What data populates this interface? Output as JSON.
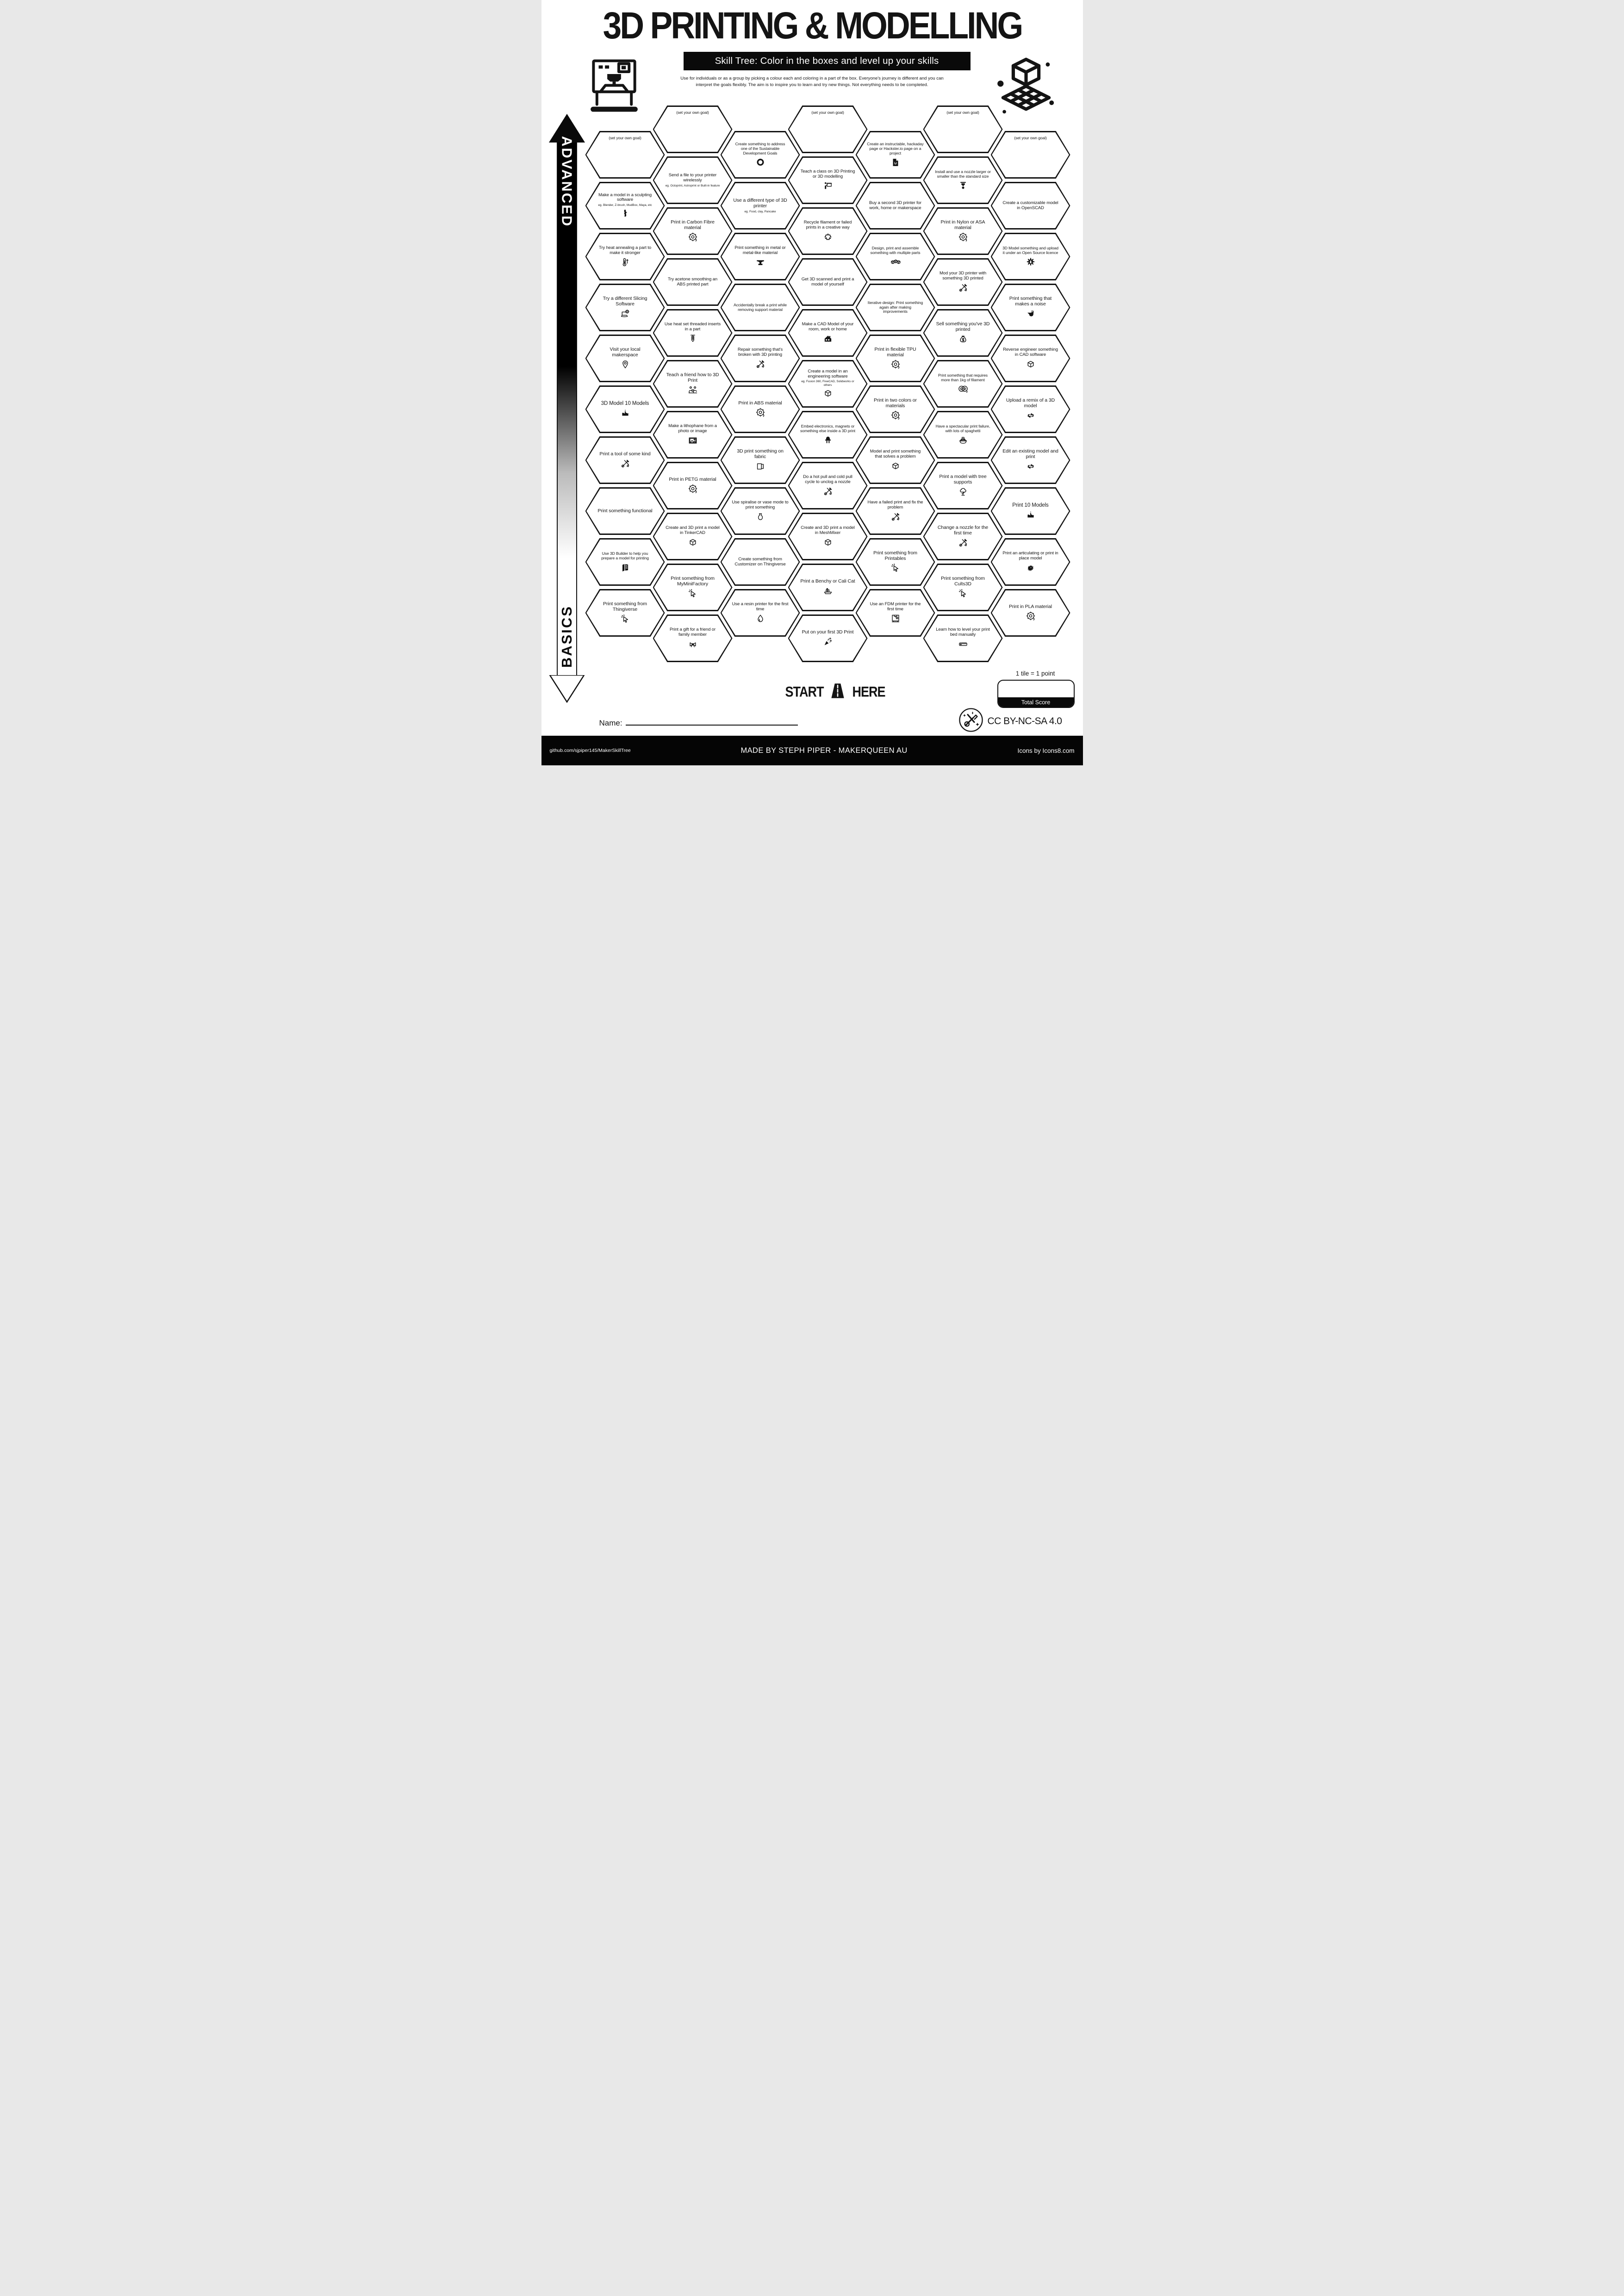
{
  "title": "3D PRINTING & MODELLING",
  "subtitle": "Skill Tree:  Color in the boxes and level up your skills",
  "intro": {
    "line1": "Use for individuals or as a group by picking a colour each and coloring in a part of the box.  Everyone's journey is different and you can",
    "line2": "interpret the goals flexibly.  The aim is to inspire you to learn and try new things. Not everything needs to be completed."
  },
  "axis": {
    "advanced": "ADVANCED",
    "basics": "BASICS"
  },
  "start": {
    "word1": "START",
    "word2": "HERE"
  },
  "scoring": {
    "tile_note": "1 tile = 1 point",
    "total_label": "Total Score"
  },
  "name_label": "Name:",
  "footer": {
    "github": "github.com/sjpiper145/MakerSkillTree",
    "made_by": "MADE BY STEPH PIPER  -  MAKERQUEEN AU",
    "icons_credit": "Icons by Icons8.com",
    "license": "CC BY-NC-SA 4.0"
  },
  "columns": [
    {
      "hexes": [
        {
          "label": "(set your own goal)",
          "goal": true
        },
        {
          "label": "Make a model in a sculpting software",
          "sub": "eg. Blender, Z-brush, MudBox, Maya, etc",
          "icon": "venus-statue"
        },
        {
          "label": "Try heat annealing a part to make it stronger",
          "icon": "thermometer-up"
        },
        {
          "label": "Try a different Slicing Software",
          "icon": "laptop-gear"
        },
        {
          "label": "Visit your local makerspace",
          "icon": "map-pin"
        },
        {
          "label": "3D Model 10 Models",
          "icon": "birthday-cake"
        },
        {
          "label": "Print a tool of some kind",
          "icon": "tools-crossed"
        },
        {
          "label": "Print something functional"
        },
        {
          "label": "Use 3D Builder to help you prepare a model for printing",
          "icon": "builder-3d"
        },
        {
          "label": "Print something from Thingiverse",
          "icon": "cursor-click"
        }
      ]
    },
    {
      "hexes": [
        {
          "label": "(set your own goal)",
          "goal": true
        },
        {
          "label": "Send a file to your printer wirelessly",
          "sub": "eg. Octoprint, Astroprint or Built-in feature"
        },
        {
          "label": "Print in Carbon Fibre material",
          "icon": "filament-spool"
        },
        {
          "label": "Try acetone smoothing an ABS printed part"
        },
        {
          "label": "Use heat set threaded inserts in a part",
          "icon": "heat-insert-screw"
        },
        {
          "label": "Teach a friend how to 3D Print",
          "icon": "friends-teaching"
        },
        {
          "label": "Make a lithophane from a photo or image",
          "icon": "photo-frame"
        },
        {
          "label": "Print in PETG material",
          "icon": "filament-spool"
        },
        {
          "label": "Create and 3D print a model in TinkerCAD",
          "icon": "cube-3d"
        },
        {
          "label": "Print something from MyMiniFactory",
          "icon": "cursor-click"
        },
        {
          "label": "Print a gift for a friend or family member",
          "icon": "gift-bow"
        }
      ]
    },
    {
      "hexes": [
        {
          "label": "Create something to address one of the Sustainable Development Goals",
          "icon": "sdg-wheel"
        },
        {
          "label": "Use a different type of 3D printer",
          "sub": "eg. Food, clay, Pancake"
        },
        {
          "label": "Print something in metal or metal-like material",
          "icon": "anvil"
        },
        {
          "label": "Accidentally break a print while removing support material"
        },
        {
          "label": "Repair something that's broken with 3D printing",
          "icon": "tools-crossed"
        },
        {
          "label": "Print in ABS material",
          "icon": "filament-spool"
        },
        {
          "label": "3D print something on fabric",
          "icon": "fabric-roll"
        },
        {
          "label": "Use spiralise or vase mode to print something",
          "icon": "vase"
        },
        {
          "label": "Create something from Customizer on Thingiverse"
        },
        {
          "label": "Use a resin printer for the first time",
          "icon": "resin-droplet"
        }
      ]
    },
    {
      "hexes": [
        {
          "label": "(set your own goal)",
          "goal": true
        },
        {
          "label": "Teach a class on 3D Printing or 3D modelling",
          "icon": "teacher-board"
        },
        {
          "label": "Recycle filament or failed prints in a creative way",
          "icon": "recycle"
        },
        {
          "label": "Get 3D scanned and print a model of yourself"
        },
        {
          "label": "Make a CAD Model of your room, work or home",
          "icon": "house"
        },
        {
          "label": "Create a model in an engineering software",
          "sub": "eg. Fusion 360, FreeCAD, Solidworks or others",
          "icon": "cube-3d"
        },
        {
          "label": "Embed electronics, magnets or something else inside a 3D print",
          "icon": "led-component"
        },
        {
          "label": "Do a hot pull and cold pull cycle to unclog a nozzle",
          "icon": "tools-crossed"
        },
        {
          "label": "Create and 3D print a model in MeshMixer",
          "icon": "cube-3d"
        },
        {
          "label": "Print a Benchy or Cali Cat",
          "icon": "benchy-boat"
        },
        {
          "label": "Put on your first 3D Print",
          "icon": "party-popper"
        }
      ]
    },
    {
      "hexes": [
        {
          "label": "Create an instructable, hackaday page or Hackster.io page on a project",
          "icon": "instructable-doc"
        },
        {
          "label": "Buy a second 3D printer for work, home or makerspace"
        },
        {
          "label": "Design, print and assemble something with multiple parts",
          "icon": "cubes-three"
        },
        {
          "label": "Iterative design: Print something again after making improvements"
        },
        {
          "label": "Print in flexible TPU material",
          "icon": "filament-spool"
        },
        {
          "label": "Print in two colors or materials",
          "icon": "filament-spool"
        },
        {
          "label": "Model and print something that solves a problem",
          "icon": "cube-3d"
        },
        {
          "label": "Have a failed print and fix the problem",
          "icon": "tools-crossed"
        },
        {
          "label": "Print something from Printables",
          "icon": "cursor-click"
        },
        {
          "label": "Use an FDM printer for the first time",
          "icon": "fdm-printer"
        }
      ]
    },
    {
      "hexes": [
        {
          "label": "(set your own goal)",
          "goal": true
        },
        {
          "label": "Install and use a nozzle larger or smaller than the standard size",
          "icon": "printer-nozzle"
        },
        {
          "label": "Print in Nylon or ASA material",
          "icon": "filament-spool"
        },
        {
          "label": "Mod your 3D printer with something 3D printed",
          "icon": "tools-crossed"
        },
        {
          "label": "Sell something you've 3D printed",
          "icon": "money-bag"
        },
        {
          "label": "Print something that requires more than 1kg of filament",
          "icon": "filament-spools-two"
        },
        {
          "label": "Have a spectacular print failure, with lots of spaghetti",
          "icon": "spaghetti-bowl"
        },
        {
          "label": "Print a model with tree supports",
          "icon": "tree-support"
        },
        {
          "label": "Change a nozzle for the first time",
          "icon": "tools-crossed"
        },
        {
          "label": "Print something from Cults3D",
          "icon": "cursor-click"
        },
        {
          "label": "Learn how to level your print bed manually",
          "icon": "leveling-ruler"
        }
      ]
    },
    {
      "hexes": [
        {
          "label": "(set your own goal)",
          "goal": true
        },
        {
          "label": "Create a customizable model in OpenSCAD"
        },
        {
          "label": "3D Model something and upload it under an Open Source licence",
          "icon": "open-source-gear"
        },
        {
          "label": "Print something that makes a noise",
          "icon": "whistle"
        },
        {
          "label": "Reverse engineer something in CAD software",
          "icon": "cube-3d"
        },
        {
          "label": "Upload a remix of a 3D model",
          "icon": "remix-arrows"
        },
        {
          "label": "Edit an existing model and print",
          "icon": "remix-arrows"
        },
        {
          "label": "Print 10 Models",
          "icon": "birthday-cake"
        },
        {
          "label": "Print an articulating or print in place model",
          "icon": "dragon-head"
        },
        {
          "label": "Print in PLA material",
          "icon": "filament-spool"
        }
      ]
    }
  ]
}
